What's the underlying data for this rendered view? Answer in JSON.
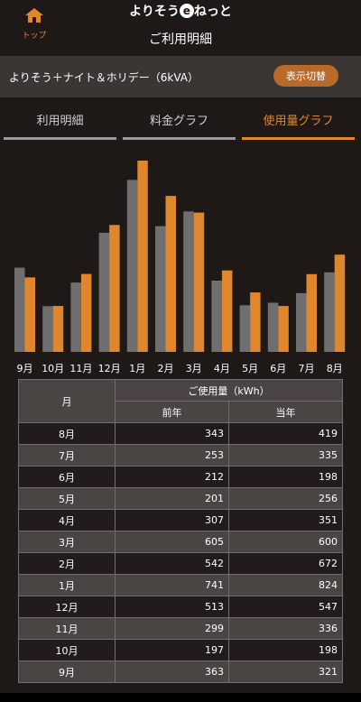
{
  "header": {
    "home_label": "トップ",
    "brand_prefix": "よりそう",
    "brand_e": "e",
    "brand_suffix": "ねっと",
    "title": "ご利用明細"
  },
  "plan": {
    "name": "よりそう＋ナイト＆ホリデー（6kVA）",
    "switch_label": "表示切替"
  },
  "tabs": [
    {
      "label": "利用明細",
      "active": false
    },
    {
      "label": "料金グラフ",
      "active": false
    },
    {
      "label": "使用量グラフ",
      "active": true
    }
  ],
  "colors": {
    "previous": "#6f6f6f",
    "current": "#e0862c"
  },
  "chart_data": {
    "type": "bar",
    "categories": [
      "9月",
      "10月",
      "11月",
      "12月",
      "1月",
      "2月",
      "3月",
      "4月",
      "5月",
      "6月",
      "7月",
      "8月"
    ],
    "series": [
      {
        "values": [
          363,
          197,
          299,
          513,
          741,
          542,
          605,
          307,
          201,
          212,
          253,
          343
        ]
      },
      {
        "values": [
          321,
          198,
          336,
          547,
          824,
          672,
          600,
          351,
          256,
          198,
          335,
          419
        ]
      }
    ],
    "ylim": [
      0,
      824
    ]
  },
  "table": {
    "col_month": "月",
    "col_group": "ご使用量（kWh）",
    "col_prev": "前年",
    "col_curr": "当年",
    "rows": [
      {
        "month": "8月",
        "prev": "343",
        "curr": "419"
      },
      {
        "month": "7月",
        "prev": "253",
        "curr": "335"
      },
      {
        "month": "6月",
        "prev": "212",
        "curr": "198"
      },
      {
        "month": "5月",
        "prev": "201",
        "curr": "256"
      },
      {
        "month": "4月",
        "prev": "307",
        "curr": "351"
      },
      {
        "month": "3月",
        "prev": "605",
        "curr": "600"
      },
      {
        "month": "2月",
        "prev": "542",
        "curr": "672"
      },
      {
        "month": "1月",
        "prev": "741",
        "curr": "824"
      },
      {
        "month": "12月",
        "prev": "513",
        "curr": "547"
      },
      {
        "month": "11月",
        "prev": "299",
        "curr": "336"
      },
      {
        "month": "10月",
        "prev": "197",
        "curr": "198"
      },
      {
        "month": "9月",
        "prev": "363",
        "curr": "321"
      }
    ]
  }
}
